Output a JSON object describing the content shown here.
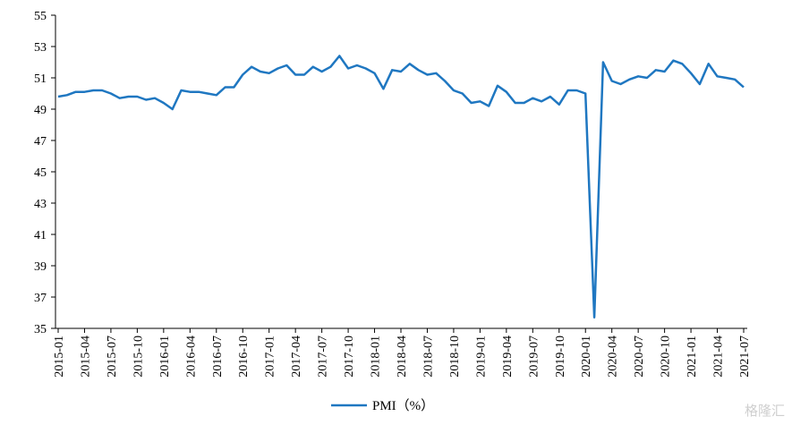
{
  "chart_data": {
    "type": "line",
    "title": "",
    "xlabel": "",
    "ylabel": "",
    "ylim": [
      35,
      55
    ],
    "yticks": [
      35,
      37,
      39,
      41,
      43,
      45,
      47,
      49,
      51,
      53,
      55
    ],
    "x_tick_labels": [
      "2015-01",
      "2015-04",
      "2015-07",
      "2015-10",
      "2016-01",
      "2016-04",
      "2016-07",
      "2016-10",
      "2017-01",
      "2017-04",
      "2017-07",
      "2017-10",
      "2018-01",
      "2018-04",
      "2018-07",
      "2018-10",
      "2019-01",
      "2019-04",
      "2019-07",
      "2019-10",
      "2020-01",
      "2020-04",
      "2020-07",
      "2020-10",
      "2021-01",
      "2021-04",
      "2021-07"
    ],
    "x_start": "2015-01",
    "grid": false,
    "legend_position": "bottom-center",
    "series": [
      {
        "name": "PMI（%）",
        "color": "#1f77c1",
        "values": [
          49.8,
          49.9,
          50.1,
          50.1,
          50.2,
          50.2,
          50.0,
          49.7,
          49.8,
          49.8,
          49.6,
          49.7,
          49.4,
          49.0,
          50.2,
          50.1,
          50.1,
          50.0,
          49.9,
          50.4,
          50.4,
          51.2,
          51.7,
          51.4,
          51.3,
          51.6,
          51.8,
          51.2,
          51.2,
          51.7,
          51.4,
          51.7,
          52.4,
          51.6,
          51.8,
          51.6,
          51.3,
          50.3,
          51.5,
          51.4,
          51.9,
          51.5,
          51.2,
          51.3,
          50.8,
          50.2,
          50.0,
          49.4,
          49.5,
          49.2,
          50.5,
          50.1,
          49.4,
          49.4,
          49.7,
          49.5,
          49.8,
          49.3,
          50.2,
          50.2,
          50.0,
          35.7,
          52.0,
          50.8,
          50.6,
          50.9,
          51.1,
          51.0,
          51.5,
          51.4,
          52.1,
          51.9,
          51.3,
          50.6,
          51.9,
          51.1,
          51.0,
          50.9,
          50.4
        ]
      }
    ]
  },
  "watermark": "格隆汇"
}
